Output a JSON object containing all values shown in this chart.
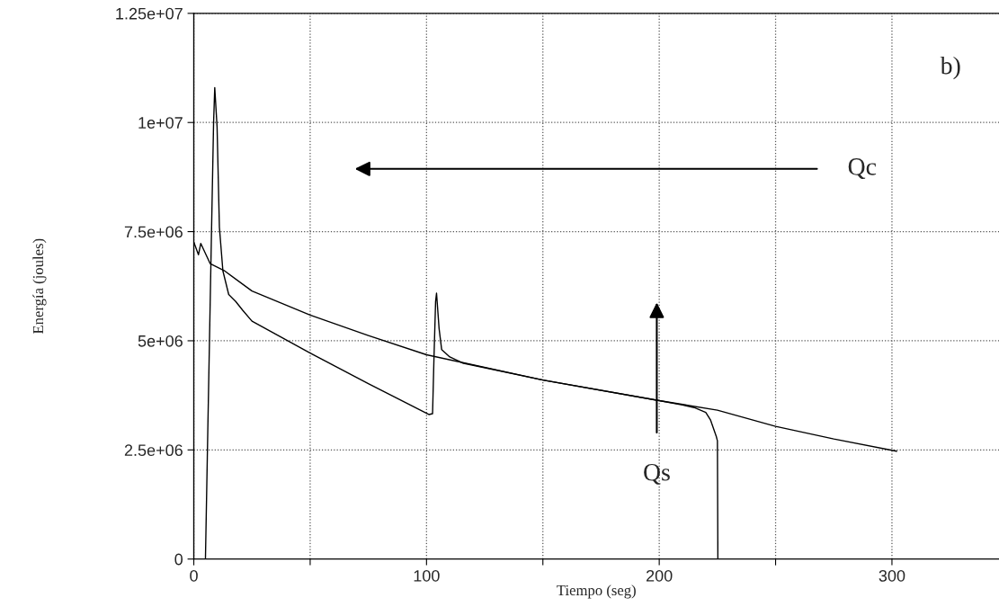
{
  "chart_data": {
    "type": "line",
    "xlabel": "Tiempo (seg)",
    "ylabel": "Energía (joules)",
    "series": [
      {
        "color": "#000000",
        "x": [
          0,
          2,
          3,
          7,
          13,
          25,
          50,
          75,
          100,
          150,
          200,
          225,
          250,
          275,
          302
        ],
        "values": [
          7260000,
          6970000,
          7230000,
          6770000,
          6610000,
          6140000,
          5590000,
          5120000,
          4680000,
          4100000,
          3630000,
          3410000,
          3040000,
          2750000,
          2470000
        ]
      },
      {
        "color": "#000000",
        "x": [
          5,
          6,
          7.5,
          8.5,
          9,
          10,
          11,
          12.5,
          15,
          18,
          21,
          25,
          50,
          75,
          101,
          102.6,
          103.2,
          103.9,
          104.3,
          105.4,
          106.5,
          110,
          115.5,
          150,
          200,
          210,
          215,
          220,
          222,
          224.5,
          225,
          225.2
        ],
        "values": [
          0,
          2900000,
          7200000,
          10000000,
          10800000,
          9900000,
          7600000,
          6600000,
          6060000,
          5900000,
          5700000,
          5450000,
          4720000,
          4020000,
          3310000,
          3330000,
          4600000,
          5900000,
          6090000,
          5280000,
          4800000,
          4630000,
          4490000,
          4100000,
          3630000,
          3530000,
          3470000,
          3360000,
          3190000,
          2810000,
          2710000,
          0
        ]
      }
    ],
    "xlim": [
      0,
      346
    ],
    "ylim": [
      0,
      12500000
    ],
    "xticks": [
      0,
      {
        "value": 50,
        "label": null
      },
      100,
      {
        "value": 150,
        "label": null
      },
      200,
      {
        "value": 250,
        "label": null
      },
      300
    ],
    "yticks": [
      {
        "value": 0,
        "label": "0"
      },
      {
        "value": 2500000,
        "label": "2.5e+06"
      },
      {
        "value": 5000000,
        "label": "5e+06"
      },
      {
        "value": 7500000,
        "label": "7.5e+06"
      },
      {
        "value": 10000000,
        "label": "1e+07"
      },
      {
        "value": 12500000,
        "label": "1.25e+07"
      }
    ],
    "grid": true,
    "line_style": "solid",
    "marker": "none",
    "annotations": [
      "Qc",
      "Qs",
      "b)"
    ]
  }
}
